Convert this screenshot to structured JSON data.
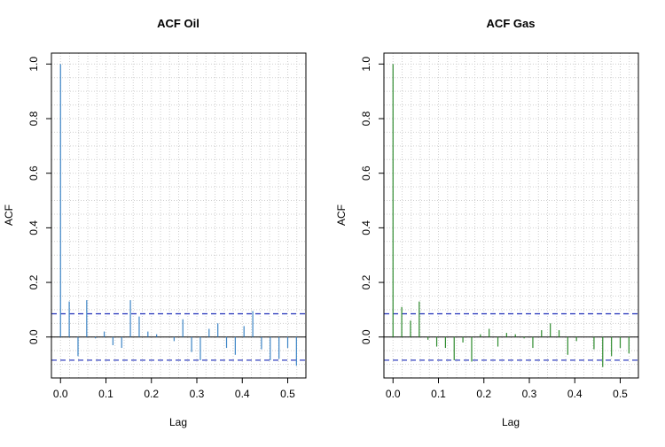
{
  "chart_data": [
    {
      "type": "bar",
      "title": "ACF Oil",
      "xlabel": "Lag",
      "ylabel": "ACF",
      "color": "#3d85c6",
      "ci_color": "#1f2fb8",
      "ci": 0.085,
      "xlim": [
        -0.02,
        0.54
      ],
      "ylim": [
        -0.15,
        1.04
      ],
      "xticks": [
        "0.0",
        "0.1",
        "0.2",
        "0.3",
        "0.4",
        "0.5"
      ],
      "yticks": [
        "0.0",
        "0.2",
        "0.4",
        "0.6",
        "0.8",
        "1.0"
      ],
      "grid": true,
      "x": [
        0.0,
        0.0192,
        0.0385,
        0.0577,
        0.0769,
        0.0962,
        0.1154,
        0.1346,
        0.1538,
        0.1731,
        0.1923,
        0.2115,
        0.2308,
        0.25,
        0.2692,
        0.2885,
        0.3077,
        0.3269,
        0.3462,
        0.3654,
        0.3846,
        0.4038,
        0.4231,
        0.4423,
        0.4615,
        0.4808,
        0.5,
        0.5192
      ],
      "values": [
        1.0,
        0.13,
        -0.07,
        0.135,
        -0.005,
        0.02,
        -0.03,
        -0.04,
        0.135,
        0.075,
        0.02,
        0.01,
        0.0,
        -0.015,
        0.065,
        -0.055,
        -0.085,
        0.03,
        0.05,
        -0.04,
        -0.065,
        0.04,
        0.095,
        -0.045,
        -0.085,
        -0.08,
        -0.04,
        -0.105
      ]
    },
    {
      "type": "bar",
      "title": "ACF Gas",
      "xlabel": "Lag",
      "ylabel": "ACF",
      "color": "#2e8b2e",
      "ci_color": "#1f2fb8",
      "ci": 0.085,
      "xlim": [
        -0.02,
        0.54
      ],
      "ylim": [
        -0.15,
        1.04
      ],
      "xticks": [
        "0.0",
        "0.1",
        "0.2",
        "0.3",
        "0.4",
        "0.5"
      ],
      "yticks": [
        "0.0",
        "0.2",
        "0.4",
        "0.6",
        "0.8",
        "1.0"
      ],
      "grid": true,
      "x": [
        0.0,
        0.0192,
        0.0385,
        0.0577,
        0.0769,
        0.0962,
        0.1154,
        0.1346,
        0.1538,
        0.1731,
        0.1923,
        0.2115,
        0.2308,
        0.25,
        0.2692,
        0.2885,
        0.3077,
        0.3269,
        0.3462,
        0.3654,
        0.3846,
        0.4038,
        0.4231,
        0.4423,
        0.4615,
        0.4808,
        0.5,
        0.5192
      ],
      "values": [
        1.0,
        0.11,
        0.06,
        0.13,
        -0.01,
        -0.035,
        -0.04,
        -0.085,
        -0.02,
        -0.09,
        0.01,
        0.03,
        -0.035,
        0.015,
        0.01,
        -0.005,
        -0.04,
        0.025,
        0.05,
        0.025,
        -0.065,
        -0.015,
        0.0,
        -0.045,
        -0.11,
        -0.07,
        -0.04,
        -0.06
      ]
    }
  ]
}
